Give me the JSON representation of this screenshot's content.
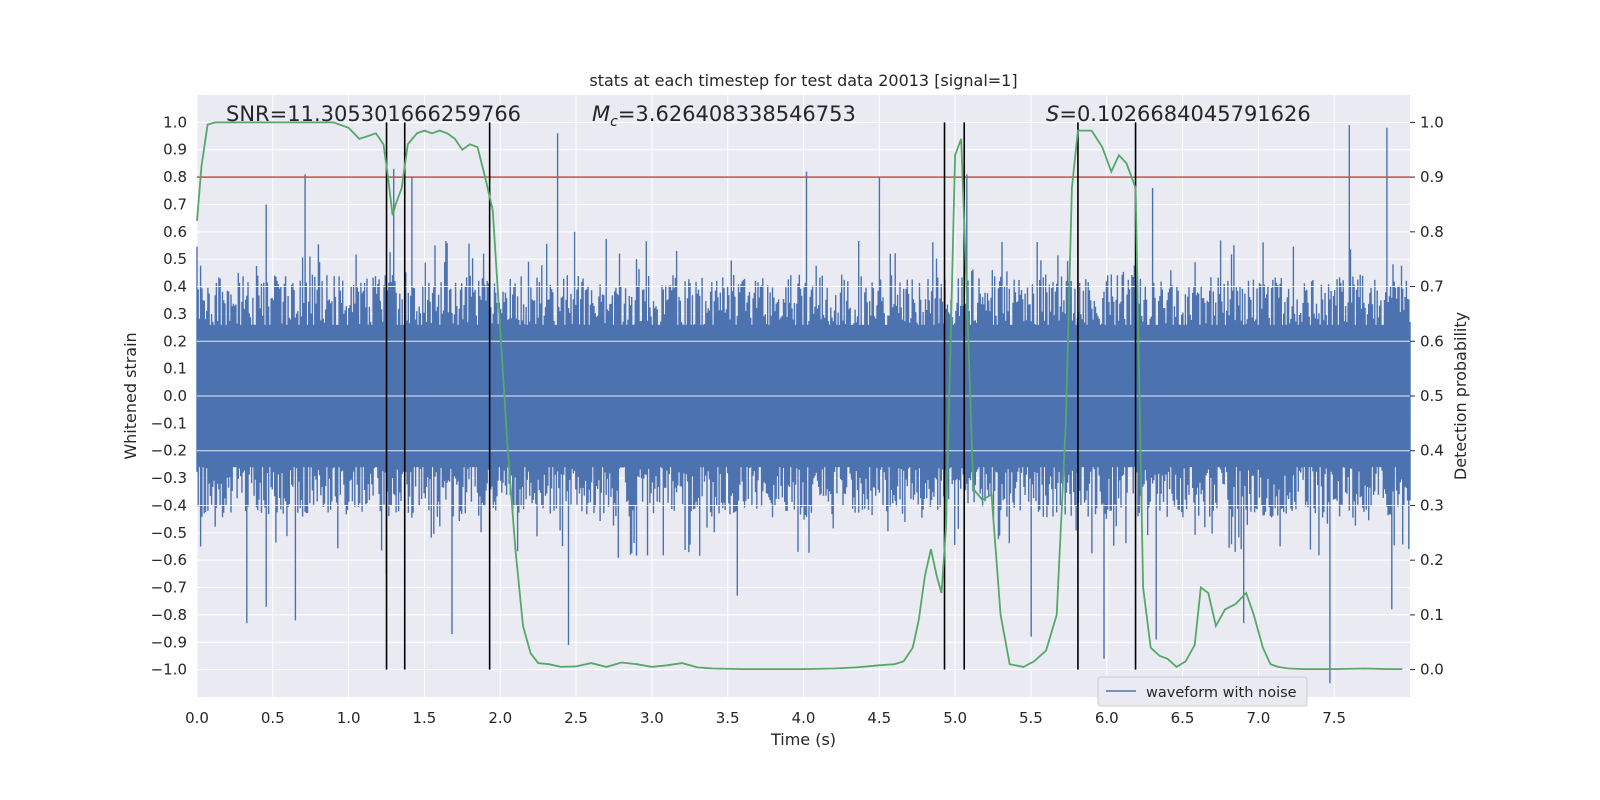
{
  "chart_data": {
    "type": "line",
    "title": "stats at each timestep for test data 20013 [signal=1]",
    "xlabel": "Time (s)",
    "ylabel_left": "Whitened strain",
    "ylabel_right": "Detection probability",
    "xlim": [
      0.0,
      8.0
    ],
    "ylim_left": [
      -1.1,
      1.1
    ],
    "ylim_right": [
      -0.05,
      1.05
    ],
    "x_ticks": [
      "0.0",
      "0.5",
      "1.0",
      "1.5",
      "2.0",
      "2.5",
      "3.0",
      "3.5",
      "4.0",
      "4.5",
      "5.0",
      "5.5",
      "6.0",
      "6.5",
      "7.0",
      "7.5"
    ],
    "y_ticks_left": [
      "1.0",
      "0.9",
      "0.8",
      "0.7",
      "0.6",
      "0.5",
      "0.4",
      "0.3",
      "0.2",
      "0.1",
      "0.0",
      "−0.1",
      "−0.2",
      "−0.3",
      "−0.4",
      "−0.5",
      "−0.6",
      "−0.7",
      "−0.8",
      "−0.9",
      "−1.0"
    ],
    "y_ticks_right": [
      "0.0",
      "0.1",
      "0.2",
      "0.3",
      "0.4",
      "0.5",
      "0.6",
      "0.7",
      "0.8",
      "0.9",
      "1.0"
    ],
    "grid": true,
    "legend_position": "bottom-right",
    "annotations": {
      "snr": "SNR=11.305301666259766",
      "mc_symbol": "M",
      "mc_sub": "c",
      "mc_value": "=3.626408338546753",
      "s_symbol": "S",
      "s_value": "=0.1026684045791626"
    },
    "threshold": {
      "value": 0.8,
      "axis": "left",
      "color": "#c44e52"
    },
    "vertical_lines": [
      1.25,
      1.37,
      1.93,
      4.93,
      5.06,
      5.81,
      6.19
    ],
    "waveform": {
      "name": "waveform with noise",
      "color": "#4c72b0",
      "typical_amplitude": 0.4,
      "spikes_up": [
        [
          0.27,
          0.45
        ],
        [
          0.46,
          0.7
        ],
        [
          0.71,
          0.81
        ],
        [
          1.3,
          0.83
        ],
        [
          1.42,
          0.8
        ],
        [
          2.38,
          0.96
        ],
        [
          2.49,
          0.6
        ],
        [
          4.02,
          0.82
        ],
        [
          4.5,
          0.8
        ],
        [
          5.08,
          0.81
        ],
        [
          6.3,
          0.76
        ],
        [
          7.6,
          0.99
        ],
        [
          7.85,
          0.98
        ]
      ],
      "spikes_down": [
        [
          0.33,
          -0.83
        ],
        [
          0.46,
          -0.77
        ],
        [
          0.65,
          -0.82
        ],
        [
          1.25,
          -0.65
        ],
        [
          1.68,
          -0.87
        ],
        [
          2.45,
          -0.91
        ],
        [
          3.56,
          -0.73
        ],
        [
          5.5,
          -0.88
        ],
        [
          5.98,
          -0.96
        ],
        [
          6.33,
          -0.89
        ],
        [
          6.9,
          -0.83
        ],
        [
          7.47,
          -1.05
        ],
        [
          7.88,
          -0.78
        ]
      ]
    },
    "detection_probability": {
      "color": "#55a868",
      "x": [
        0.0,
        0.03,
        0.07,
        0.12,
        0.2,
        0.3,
        0.5,
        0.7,
        0.9,
        1.0,
        1.07,
        1.13,
        1.18,
        1.23,
        1.26,
        1.29,
        1.31,
        1.35,
        1.39,
        1.45,
        1.5,
        1.55,
        1.6,
        1.65,
        1.7,
        1.75,
        1.8,
        1.85,
        1.9,
        1.95,
        2.0,
        2.05,
        2.1,
        2.15,
        2.2,
        2.25,
        2.32,
        2.4,
        2.5,
        2.6,
        2.7,
        2.8,
        2.9,
        3.0,
        3.1,
        3.2,
        3.3,
        3.4,
        3.6,
        3.8,
        4.0,
        4.2,
        4.35,
        4.5,
        4.6,
        4.66,
        4.72,
        4.76,
        4.8,
        4.84,
        4.88,
        4.91,
        4.94,
        4.97,
        5.0,
        5.04,
        5.08,
        5.12,
        5.18,
        5.24,
        5.3,
        5.36,
        5.45,
        5.52,
        5.6,
        5.67,
        5.73,
        5.77,
        5.81,
        5.85,
        5.9,
        5.97,
        6.03,
        6.08,
        6.13,
        6.19,
        6.24,
        6.29,
        6.35,
        6.4,
        6.46,
        6.52,
        6.58,
        6.62,
        6.67,
        6.72,
        6.78,
        6.85,
        6.92,
        6.97,
        7.03,
        7.08,
        7.13,
        7.2,
        7.3,
        7.5,
        7.7,
        7.85,
        7.95
      ],
      "y": [
        0.82,
        0.92,
        0.996,
        1.0,
        1.0,
        1.0,
        1.0,
        1.0,
        1.0,
        0.99,
        0.97,
        0.975,
        0.98,
        0.96,
        0.9,
        0.83,
        0.85,
        0.88,
        0.96,
        0.98,
        0.985,
        0.98,
        0.985,
        0.98,
        0.97,
        0.95,
        0.96,
        0.955,
        0.9,
        0.84,
        0.62,
        0.4,
        0.22,
        0.08,
        0.03,
        0.012,
        0.01,
        0.005,
        0.006,
        0.012,
        0.005,
        0.013,
        0.01,
        0.005,
        0.008,
        0.012,
        0.004,
        0.002,
        0.001,
        0.001,
        0.001,
        0.002,
        0.004,
        0.008,
        0.01,
        0.015,
        0.04,
        0.09,
        0.17,
        0.22,
        0.17,
        0.14,
        0.26,
        0.6,
        0.94,
        0.97,
        0.66,
        0.33,
        0.31,
        0.32,
        0.1,
        0.01,
        0.005,
        0.015,
        0.035,
        0.1,
        0.45,
        0.88,
        0.985,
        0.985,
        0.985,
        0.955,
        0.91,
        0.94,
        0.925,
        0.88,
        0.15,
        0.04,
        0.025,
        0.02,
        0.005,
        0.015,
        0.045,
        0.15,
        0.14,
        0.08,
        0.11,
        0.12,
        0.14,
        0.1,
        0.04,
        0.01,
        0.005,
        0.002,
        0.001,
        0.001,
        0.002,
        0.001,
        0.001
      ]
    }
  }
}
